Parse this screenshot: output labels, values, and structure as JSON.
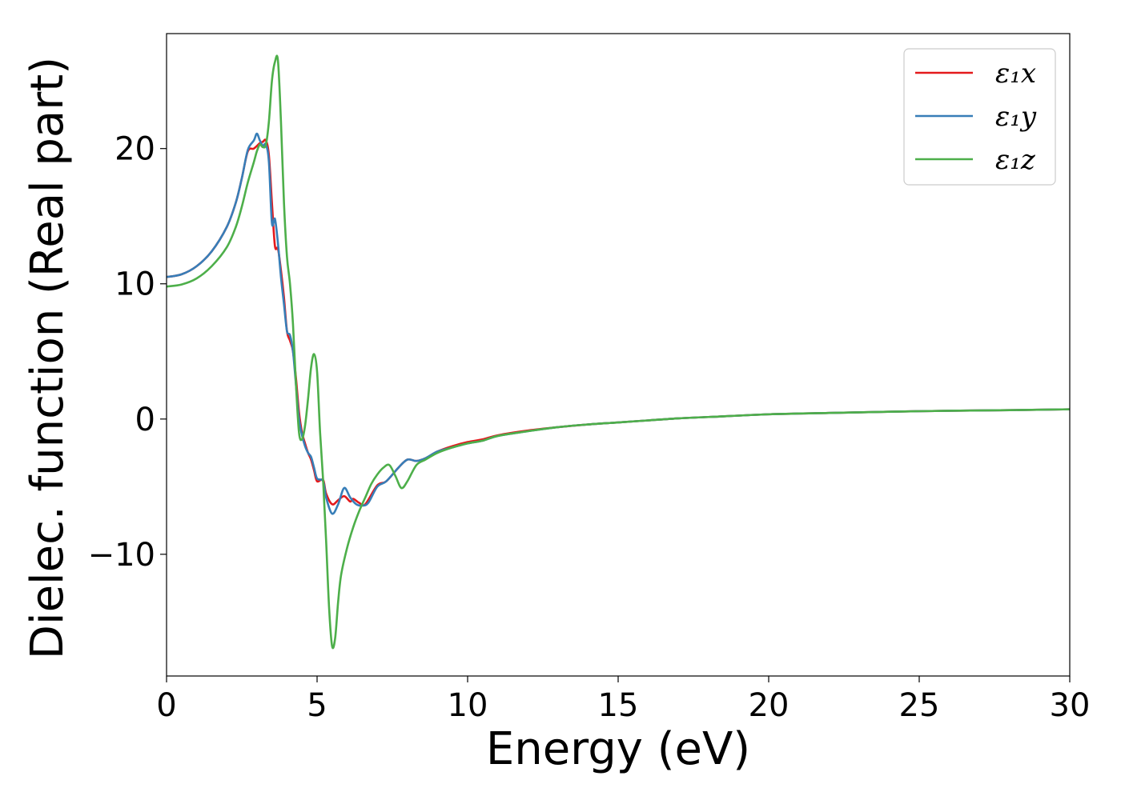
{
  "chart_data": {
    "type": "line",
    "xlabel": "Energy (eV)",
    "ylabel": "Dielec. function (Real part)",
    "xlim": [
      0,
      30
    ],
    "ylim": [
      -19,
      28.5
    ],
    "xticks": [
      0,
      5,
      10,
      15,
      20,
      25,
      30
    ],
    "xtick_labels": [
      "0",
      "5",
      "10",
      "15",
      "20",
      "25",
      "30"
    ],
    "yticks": [
      -10,
      0,
      10,
      20
    ],
    "ytick_labels": [
      "−10",
      "0",
      "10",
      "20"
    ],
    "grid": false,
    "legend_position": "top-right",
    "series": [
      {
        "name": "ε₁x",
        "color": "#e41a1c",
        "points": [
          [
            0,
            10.5
          ],
          [
            0.5,
            10.7
          ],
          [
            1.0,
            11.3
          ],
          [
            1.5,
            12.4
          ],
          [
            2.0,
            14.2
          ],
          [
            2.3,
            16.0
          ],
          [
            2.5,
            17.8
          ],
          [
            2.7,
            19.8
          ],
          [
            2.9,
            20.0
          ],
          [
            3.1,
            20.4
          ],
          [
            3.2,
            20.5
          ],
          [
            3.3,
            20.6
          ],
          [
            3.4,
            19.5
          ],
          [
            3.5,
            16.0
          ],
          [
            3.6,
            12.8
          ],
          [
            3.7,
            12.6
          ],
          [
            3.8,
            11.0
          ],
          [
            3.9,
            9.0
          ],
          [
            4.0,
            6.5
          ],
          [
            4.1,
            5.8
          ],
          [
            4.2,
            5.0
          ],
          [
            4.3,
            3.0
          ],
          [
            4.4,
            0.5
          ],
          [
            4.5,
            -1.0
          ],
          [
            4.6,
            -1.8
          ],
          [
            4.7,
            -2.5
          ],
          [
            4.8,
            -3.0
          ],
          [
            4.9,
            -3.8
          ],
          [
            5.0,
            -4.6
          ],
          [
            5.2,
            -4.5
          ],
          [
            5.3,
            -5.5
          ],
          [
            5.5,
            -6.3
          ],
          [
            5.7,
            -6.0
          ],
          [
            5.9,
            -5.7
          ],
          [
            6.1,
            -6.1
          ],
          [
            6.2,
            -5.9
          ],
          [
            6.4,
            -6.2
          ],
          [
            6.6,
            -6.3
          ],
          [
            7.0,
            -4.9
          ],
          [
            7.3,
            -4.6
          ],
          [
            7.7,
            -3.6
          ],
          [
            8.0,
            -3.0
          ],
          [
            8.3,
            -3.1
          ],
          [
            8.6,
            -2.9
          ],
          [
            9.0,
            -2.4
          ],
          [
            9.5,
            -2.0
          ],
          [
            10.0,
            -1.7
          ],
          [
            10.5,
            -1.5
          ],
          [
            11.0,
            -1.2
          ],
          [
            12.0,
            -0.85
          ],
          [
            13.0,
            -0.6
          ],
          [
            14.0,
            -0.4
          ],
          [
            15.0,
            -0.25
          ],
          [
            16.0,
            -0.1
          ],
          [
            17.0,
            0.05
          ],
          [
            18.0,
            0.15
          ],
          [
            20.0,
            0.35
          ],
          [
            22.0,
            0.45
          ],
          [
            25.0,
            0.58
          ],
          [
            28.0,
            0.66
          ],
          [
            30.0,
            0.72
          ]
        ]
      },
      {
        "name": "ε₁y",
        "color": "#377eb8",
        "points": [
          [
            0,
            10.5
          ],
          [
            0.5,
            10.7
          ],
          [
            1.0,
            11.3
          ],
          [
            1.5,
            12.4
          ],
          [
            2.0,
            14.2
          ],
          [
            2.3,
            16.0
          ],
          [
            2.5,
            17.8
          ],
          [
            2.7,
            19.9
          ],
          [
            2.9,
            20.6
          ],
          [
            3.0,
            21.1
          ],
          [
            3.1,
            20.6
          ],
          [
            3.2,
            20.2
          ],
          [
            3.3,
            20.3
          ],
          [
            3.4,
            19.0
          ],
          [
            3.5,
            14.5
          ],
          [
            3.6,
            14.8
          ],
          [
            3.7,
            13.0
          ],
          [
            3.8,
            10.5
          ],
          [
            3.9,
            8.5
          ],
          [
            4.0,
            6.5
          ],
          [
            4.1,
            6.2
          ],
          [
            4.2,
            5.0
          ],
          [
            4.3,
            2.5
          ],
          [
            4.4,
            0.0
          ],
          [
            4.5,
            -1.2
          ],
          [
            4.6,
            -2.0
          ],
          [
            4.7,
            -2.5
          ],
          [
            4.8,
            -2.8
          ],
          [
            4.9,
            -3.6
          ],
          [
            5.0,
            -4.4
          ],
          [
            5.2,
            -4.6
          ],
          [
            5.3,
            -5.8
          ],
          [
            5.5,
            -7.0
          ],
          [
            5.7,
            -6.3
          ],
          [
            5.9,
            -5.1
          ],
          [
            6.1,
            -5.8
          ],
          [
            6.3,
            -6.3
          ],
          [
            6.5,
            -6.4
          ],
          [
            6.7,
            -6.2
          ],
          [
            7.0,
            -5.0
          ],
          [
            7.3,
            -4.6
          ],
          [
            7.7,
            -3.6
          ],
          [
            8.0,
            -3.0
          ],
          [
            8.3,
            -3.1
          ],
          [
            8.6,
            -2.9
          ],
          [
            9.0,
            -2.4
          ],
          [
            9.5,
            -2.1
          ],
          [
            10.0,
            -1.8
          ],
          [
            10.5,
            -1.6
          ],
          [
            11.0,
            -1.25
          ],
          [
            12.0,
            -0.9
          ],
          [
            13.0,
            -0.6
          ],
          [
            14.0,
            -0.4
          ],
          [
            15.0,
            -0.25
          ],
          [
            16.0,
            -0.1
          ],
          [
            17.0,
            0.05
          ],
          [
            18.0,
            0.15
          ],
          [
            20.0,
            0.35
          ],
          [
            22.0,
            0.45
          ],
          [
            25.0,
            0.58
          ],
          [
            28.0,
            0.66
          ],
          [
            30.0,
            0.72
          ]
        ]
      },
      {
        "name": "ε₁z",
        "color": "#4daf4a",
        "points": [
          [
            0,
            9.8
          ],
          [
            0.5,
            9.95
          ],
          [
            1.0,
            10.4
          ],
          [
            1.5,
            11.3
          ],
          [
            2.0,
            12.7
          ],
          [
            2.3,
            14.2
          ],
          [
            2.5,
            15.7
          ],
          [
            2.7,
            17.5
          ],
          [
            2.9,
            19.0
          ],
          [
            3.0,
            19.8
          ],
          [
            3.1,
            20.3
          ],
          [
            3.2,
            20.1
          ],
          [
            3.3,
            20.3
          ],
          [
            3.4,
            22.0
          ],
          [
            3.5,
            25.0
          ],
          [
            3.6,
            26.4
          ],
          [
            3.7,
            26.5
          ],
          [
            3.8,
            22.0
          ],
          [
            3.9,
            16.0
          ],
          [
            4.0,
            12.0
          ],
          [
            4.1,
            10.0
          ],
          [
            4.2,
            7.0
          ],
          [
            4.3,
            2.5
          ],
          [
            4.4,
            -1.0
          ],
          [
            4.5,
            -1.5
          ],
          [
            4.6,
            -0.5
          ],
          [
            4.7,
            1.5
          ],
          [
            4.8,
            3.8
          ],
          [
            4.9,
            4.8
          ],
          [
            5.0,
            3.5
          ],
          [
            5.1,
            -1.0
          ],
          [
            5.2,
            -4.5
          ],
          [
            5.3,
            -9.0
          ],
          [
            5.4,
            -14.0
          ],
          [
            5.5,
            -16.8
          ],
          [
            5.6,
            -16.2
          ],
          [
            5.7,
            -13.5
          ],
          [
            5.8,
            -11.5
          ],
          [
            6.0,
            -9.5
          ],
          [
            6.2,
            -8.0
          ],
          [
            6.4,
            -6.8
          ],
          [
            6.6,
            -5.8
          ],
          [
            6.8,
            -4.8
          ],
          [
            7.0,
            -4.1
          ],
          [
            7.2,
            -3.6
          ],
          [
            7.4,
            -3.4
          ],
          [
            7.6,
            -4.2
          ],
          [
            7.8,
            -5.1
          ],
          [
            8.0,
            -4.6
          ],
          [
            8.3,
            -3.4
          ],
          [
            8.6,
            -3.0
          ],
          [
            9.0,
            -2.5
          ],
          [
            9.5,
            -2.1
          ],
          [
            10.0,
            -1.8
          ],
          [
            10.5,
            -1.6
          ],
          [
            11.0,
            -1.25
          ],
          [
            12.0,
            -0.9
          ],
          [
            13.0,
            -0.6
          ],
          [
            14.0,
            -0.4
          ],
          [
            15.0,
            -0.25
          ],
          [
            16.0,
            -0.1
          ],
          [
            17.0,
            0.05
          ],
          [
            18.0,
            0.15
          ],
          [
            20.0,
            0.35
          ],
          [
            22.0,
            0.45
          ],
          [
            25.0,
            0.58
          ],
          [
            28.0,
            0.66
          ],
          [
            30.0,
            0.72
          ]
        ]
      }
    ]
  }
}
